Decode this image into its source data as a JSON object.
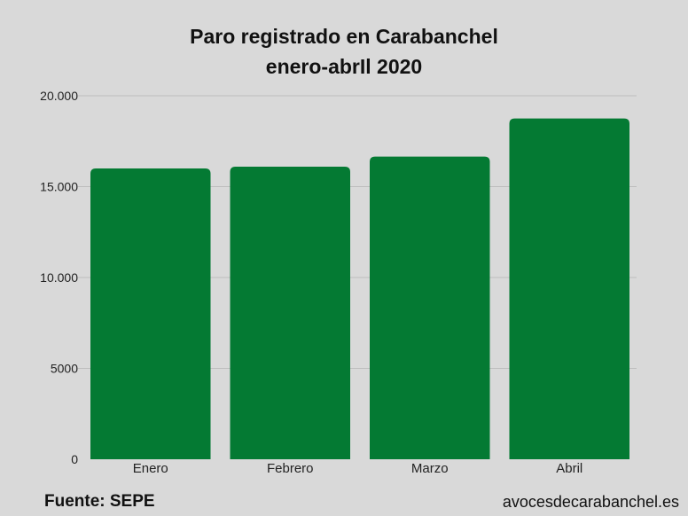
{
  "chart_data": {
    "type": "bar",
    "title": "Paro registrado en Carabanchel",
    "subtitle": "enero-abrIl 2020",
    "categories": [
      "Enero",
      "Febrero",
      "Marzo",
      "Abril"
    ],
    "values": [
      16000,
      16100,
      16650,
      18750
    ],
    "ylim": [
      0,
      20000
    ],
    "yticks": [
      0,
      5000,
      10000,
      15000,
      20000
    ],
    "ytick_labels": [
      "0",
      "5000",
      "10.000",
      "15.000",
      "20.000"
    ],
    "grid": true,
    "bar_color": "#047a33"
  },
  "footer": {
    "source": "Fuente: SEPE",
    "site": "avocesdecarabanchel.es"
  }
}
